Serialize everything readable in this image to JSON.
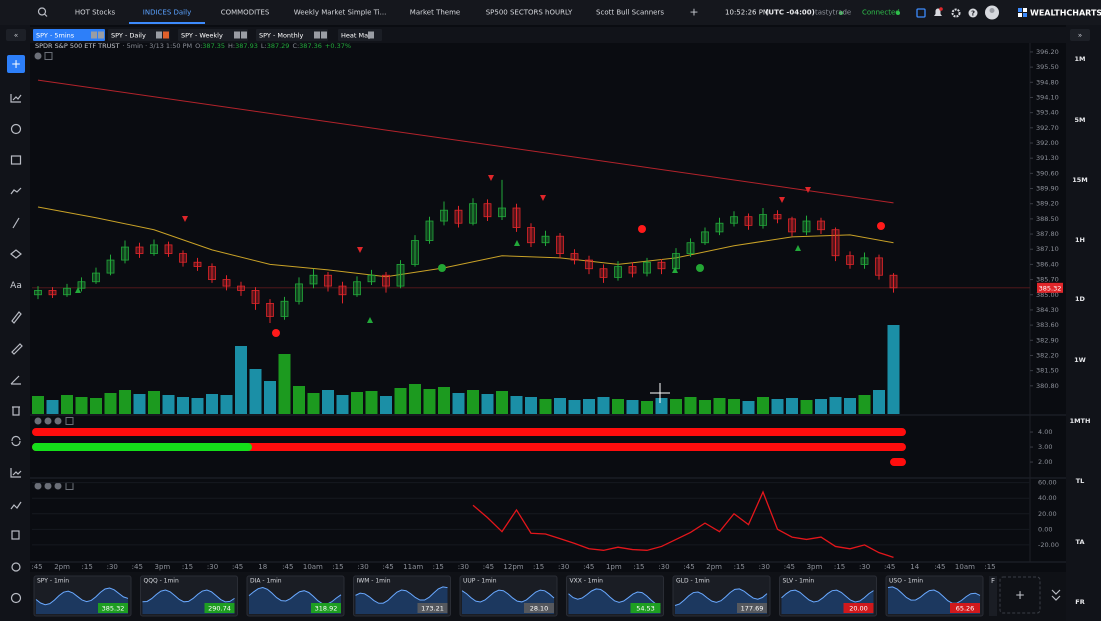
{
  "top_tabs": [
    "HOT Stocks",
    "INDICES Daily",
    "COMMODITES",
    "Weekly Market Simple Ti...",
    "Market Theme",
    "SP500 SECTORS hOURLY",
    "Scott Bull Scanners"
  ],
  "clock": "10:52:26 PM",
  "timezone": "(UTC -04:00)",
  "broker": "tastytrade",
  "status": "Connected",
  "brand": "WEALTHCHARTS",
  "chart_tabs": [
    "SPY - 5mins",
    "SPY - Daily",
    "SPY - Weekly",
    "SPY - Monthly",
    "Heat Map"
  ],
  "right_buttons": [
    "1M",
    "5M",
    "15M",
    "1H",
    "1D",
    "1W",
    "1MTH",
    "TL",
    "TA",
    "FR"
  ],
  "time_axis": [
    ":45",
    "2pm",
    ":15",
    ":30",
    ":45",
    "3pm",
    ":15",
    ":30",
    ":45",
    "18",
    ":45",
    "10am",
    ":15",
    ":30",
    ":45",
    "11am",
    ":15",
    ":30",
    ":45",
    "12pm",
    ":15",
    ":30",
    ":45",
    "1pm",
    ":15",
    ":30",
    ":45",
    "2pm",
    ":15",
    ":30",
    ":45",
    "3pm",
    ":15",
    ":30",
    ":45",
    "14",
    ":45",
    "10am",
    ":15"
  ],
  "chart_data": [
    {
      "type": "candlestick",
      "title": "SPDR S&P 500 ETF TRUST",
      "subtitle": "· 5min · 3/13 1:50 PM",
      "ohlc_legend": [
        {
          "name": "O:",
          "value": 387.35
        },
        {
          "name": "H:",
          "value": 387.93
        },
        {
          "name": "L:",
          "value": 387.29
        },
        {
          "name": "C:",
          "value": 387.36
        }
      ],
      "change": {
        "value": 0.37,
        "label": "+0.37%"
      },
      "up_color": "#22a93a",
      "down_color": "#e0262a",
      "ylim": [
        379.5,
        396.52
      ],
      "yticks": [
        {
          "value": 396.2,
          "label": "396.20"
        },
        {
          "value": 395.5,
          "label": "395.50"
        },
        {
          "value": 394.8,
          "label": "394.80"
        },
        {
          "value": 394.1,
          "label": "394.10"
        },
        {
          "value": 393.4,
          "label": "393.40"
        },
        {
          "value": 392.7,
          "label": "392.70"
        },
        {
          "value": 392.0,
          "label": "392.00"
        },
        {
          "value": 391.3,
          "label": "391.30"
        },
        {
          "value": 390.6,
          "label": "390.60"
        },
        {
          "value": 389.9,
          "label": "389.90"
        },
        {
          "value": 389.2,
          "label": "389.20"
        },
        {
          "value": 388.5,
          "label": "388.50"
        },
        {
          "value": 387.8,
          "label": "387.80"
        },
        {
          "value": 387.1,
          "label": "387.10"
        },
        {
          "value": 386.4,
          "label": "386.40"
        },
        {
          "value": 385.7,
          "label": "385.70"
        },
        {
          "value": 385.0,
          "label": "385.00"
        },
        {
          "value": 384.3,
          "label": "384.30"
        },
        {
          "value": 383.6,
          "label": "383.60"
        },
        {
          "value": 382.9,
          "label": "382.90"
        },
        {
          "value": 382.2,
          "label": "382.20"
        },
        {
          "value": 381.5,
          "label": "381.50"
        },
        {
          "value": 380.8,
          "label": "380.80"
        }
      ],
      "last_price": 385.32,
      "ohlc": [
        [
          385.0,
          385.4,
          384.8,
          385.2
        ],
        [
          385.2,
          385.35,
          384.85,
          385.0
        ],
        [
          385.0,
          385.5,
          384.9,
          385.3
        ],
        [
          385.3,
          385.8,
          385.15,
          385.6
        ],
        [
          385.6,
          386.25,
          385.5,
          386.0
        ],
        [
          386.0,
          386.85,
          385.9,
          386.6
        ],
        [
          386.6,
          387.5,
          386.45,
          387.2
        ],
        [
          387.2,
          387.4,
          386.7,
          386.9
        ],
        [
          386.9,
          387.55,
          386.8,
          387.3
        ],
        [
          387.3,
          387.45,
          386.75,
          386.9
        ],
        [
          386.9,
          387.05,
          386.3,
          386.5
        ],
        [
          386.5,
          386.7,
          386.1,
          386.3
        ],
        [
          386.3,
          386.45,
          385.55,
          385.7
        ],
        [
          385.7,
          385.9,
          385.2,
          385.4
        ],
        [
          385.4,
          385.6,
          384.95,
          385.2
        ],
        [
          385.2,
          385.35,
          384.3,
          384.6
        ],
        [
          384.6,
          384.8,
          383.7,
          384.0
        ],
        [
          384.0,
          384.9,
          383.85,
          384.7
        ],
        [
          384.7,
          385.8,
          384.55,
          385.5
        ],
        [
          385.5,
          386.2,
          385.3,
          385.9
        ],
        [
          385.9,
          386.05,
          385.15,
          385.4
        ],
        [
          385.4,
          385.6,
          384.6,
          385.0
        ],
        [
          385.0,
          385.85,
          384.9,
          385.6
        ],
        [
          385.6,
          386.15,
          385.45,
          385.9
        ],
        [
          385.9,
          386.05,
          385.1,
          385.4
        ],
        [
          385.4,
          386.6,
          385.3,
          386.4
        ],
        [
          386.4,
          387.75,
          386.3,
          387.5
        ],
        [
          387.5,
          388.6,
          387.35,
          388.4
        ],
        [
          388.4,
          389.3,
          388.2,
          388.9
        ],
        [
          388.9,
          389.1,
          388.1,
          388.3
        ],
        [
          388.3,
          389.45,
          388.2,
          389.2
        ],
        [
          389.2,
          389.4,
          388.4,
          388.6
        ],
        [
          388.6,
          390.3,
          388.45,
          389.0
        ],
        [
          389.0,
          389.2,
          387.9,
          388.1
        ],
        [
          388.1,
          388.3,
          387.2,
          387.4
        ],
        [
          387.4,
          387.95,
          387.25,
          387.7
        ],
        [
          387.7,
          387.85,
          386.7,
          386.9
        ],
        [
          386.9,
          387.1,
          386.4,
          386.6
        ],
        [
          386.6,
          386.8,
          385.95,
          386.2
        ],
        [
          386.2,
          386.4,
          385.55,
          385.8
        ],
        [
          385.8,
          386.55,
          385.65,
          386.3
        ],
        [
          386.3,
          386.5,
          385.8,
          386.0
        ],
        [
          386.0,
          386.7,
          385.85,
          386.5
        ],
        [
          386.5,
          386.65,
          385.95,
          386.2
        ],
        [
          386.2,
          387.15,
          386.1,
          386.9
        ],
        [
          386.9,
          387.6,
          386.75,
          387.4
        ],
        [
          387.4,
          388.1,
          387.3,
          387.9
        ],
        [
          387.9,
          388.55,
          387.75,
          388.3
        ],
        [
          388.3,
          388.85,
          388.15,
          388.6
        ],
        [
          388.6,
          388.75,
          388.0,
          388.2
        ],
        [
          388.2,
          389.0,
          388.05,
          388.7
        ],
        [
          388.7,
          388.9,
          388.3,
          388.5
        ],
        [
          388.5,
          388.6,
          387.7,
          387.9
        ],
        [
          387.9,
          388.65,
          387.75,
          388.4
        ],
        [
          388.4,
          388.55,
          387.8,
          388.0
        ],
        [
          388.0,
          388.1,
          386.55,
          386.8
        ],
        [
          386.8,
          387.0,
          386.2,
          386.4
        ],
        [
          386.4,
          386.95,
          386.2,
          386.7
        ],
        [
          386.7,
          386.85,
          385.7,
          385.9
        ],
        [
          385.9,
          386.0,
          385.1,
          385.32
        ]
      ],
      "volume": [
        180,
        140,
        190,
        170,
        160,
        210,
        240,
        200,
        230,
        190,
        170,
        160,
        200,
        190,
        680,
        450,
        330,
        600,
        280,
        210,
        240,
        190,
        220,
        230,
        180,
        260,
        300,
        250,
        270,
        210,
        240,
        200,
        230,
        180,
        170,
        150,
        160,
        140,
        150,
        170,
        150,
        140,
        130,
        160,
        150,
        170,
        140,
        160,
        150,
        130,
        170,
        150,
        160,
        140,
        150,
        170,
        160,
        190,
        240,
        890
      ],
      "volume_up_color": "#1c9a1f",
      "volume_down_color": "#1b8fa6",
      "moving_averages": [
        {
          "color": "#b3232b",
          "x": [
            0,
            59
          ],
          "values": [
            394.9,
            389.24
          ]
        },
        {
          "color": "#c9a227",
          "x": [
            0,
            4,
            8,
            12,
            16,
            20,
            24,
            28,
            32,
            36,
            40,
            44,
            48,
            52,
            56,
            59
          ],
          "values": [
            389.05,
            388.55,
            388.0,
            387.07,
            386.4,
            386.15,
            385.83,
            386.24,
            386.8,
            386.7,
            386.4,
            386.7,
            387.26,
            387.67,
            387.76,
            387.4
          ]
        }
      ]
    },
    {
      "type": "bar",
      "ylim": [
        1.47,
        4.47
      ],
      "yticks": [
        {
          "value": 4,
          "label": "4.00"
        },
        {
          "value": 3,
          "label": "3.00"
        },
        {
          "value": 2,
          "label": "2.00"
        }
      ]
    },
    {
      "type": "line",
      "ylim": [
        -42,
        66
      ],
      "yticks": [
        {
          "value": 60,
          "label": "60.00"
        },
        {
          "value": 40,
          "label": "40.00"
        },
        {
          "value": 20,
          "label": "20.00"
        },
        {
          "value": 0,
          "label": "0.00"
        },
        {
          "value": -20,
          "label": "-20.00"
        }
      ],
      "grid": true,
      "series": [
        {
          "color": "#e3161b",
          "values": [
            null,
            null,
            null,
            null,
            null,
            null,
            null,
            null,
            null,
            null,
            null,
            null,
            null,
            null,
            null,
            null,
            null,
            null,
            null,
            null,
            null,
            null,
            null,
            null,
            null,
            null,
            null,
            null,
            null,
            null,
            31,
            15,
            -3,
            25,
            -5,
            -6,
            -12,
            -18,
            -25,
            -27,
            -23,
            -26,
            -27,
            -22,
            -13,
            -4,
            8,
            -3,
            20,
            6,
            48,
            0,
            -10,
            -13,
            -10,
            -22,
            -25,
            -20,
            -30,
            -36
          ]
        }
      ]
    }
  ],
  "watchlist": [
    {
      "name": "SPY - 1min",
      "price": 385.32,
      "color": "#1e9e22"
    },
    {
      "name": "QQQ - 1min",
      "price": 290.74,
      "color": "#1e9e22"
    },
    {
      "name": "DIA - 1min",
      "price": 318.92,
      "color": "#1e9e22"
    },
    {
      "name": "IWM - 1min",
      "price": 173.21,
      "color": "#55585e"
    },
    {
      "name": "UUP - 1min",
      "price": {
        "value": 28.1,
        "label": "28.10"
      },
      "color": "#55585e"
    },
    {
      "name": "VXX - 1min",
      "price": 54.53,
      "color": "#1e9e22"
    },
    {
      "name": "GLD - 1min",
      "price": 177.69,
      "color": "#55585e"
    },
    {
      "name": "SLV - 1min",
      "price": {
        "value": 20,
        "label": "20.00"
      },
      "color": "#d0191c"
    },
    {
      "name": "USO - 1min",
      "price": 65.26,
      "color": "#d0191c"
    }
  ]
}
